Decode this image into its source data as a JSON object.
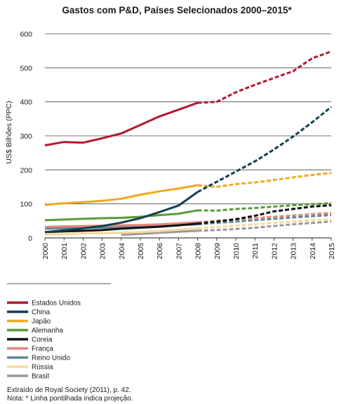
{
  "chart_data": {
    "type": "line",
    "title": "Gastos com P&D, Países Selecionados 2000–2015*",
    "ylabel": "US$ Bilhões (PPC)",
    "xlabel": "",
    "x": [
      "2000",
      "2001",
      "2002",
      "2003",
      "2004",
      "2005",
      "2006",
      "2007",
      "2008",
      "2009",
      "2010",
      "2011",
      "2012",
      "2013",
      "2014",
      "2015"
    ],
    "ylim": [
      0,
      600
    ],
    "yticks": [
      "0",
      "100",
      "200",
      "300",
      "400",
      "500",
      "600"
    ],
    "grid": "horizontal",
    "projection_start": "2008",
    "legend_position": "bottom-left",
    "series": [
      {
        "name": "Estados Unidos",
        "color": "#b5172e",
        "values": [
          272,
          282,
          280,
          293,
          307,
          332,
          357,
          377,
          397,
          400,
          428,
          450,
          470,
          490,
          528,
          548
        ]
      },
      {
        "name": "China",
        "color": "#113f4f",
        "values": [
          17,
          22,
          28,
          35,
          45,
          58,
          76,
          95,
          135,
          165,
          195,
          225,
          260,
          298,
          340,
          385
        ]
      },
      {
        "name": "Japão",
        "color": "#f2a81d",
        "values": [
          97,
          102,
          105,
          109,
          115,
          127,
          137,
          145,
          155,
          150,
          158,
          163,
          170,
          178,
          185,
          191
        ]
      },
      {
        "name": "Alemanha",
        "color": "#5a9a38",
        "values": [
          52,
          54,
          56,
          58,
          59,
          62,
          67,
          71,
          81,
          80,
          85,
          88,
          92,
          96,
          99,
          102
        ]
      },
      {
        "name": "Coreia",
        "color": "#111111",
        "values": [
          17,
          19,
          21,
          23,
          27,
          30,
          33,
          37,
          42,
          48,
          55,
          65,
          78,
          85,
          92,
          96
        ]
      },
      {
        "name": "França",
        "color": "#e8847a",
        "values": [
          32,
          34,
          35,
          36,
          37,
          38,
          40,
          43,
          46,
          50,
          54,
          58,
          62,
          66,
          70,
          73
        ]
      },
      {
        "name": "Reino Unido",
        "color": "#5b8a96",
        "values": [
          27,
          28,
          29,
          30,
          31,
          33,
          36,
          38,
          40,
          44,
          48,
          52,
          56,
          60,
          64,
          67
        ]
      },
      {
        "name": "Rússia",
        "color": "#f9d89a",
        "values": [
          10,
          11,
          13,
          14,
          15,
          17,
          20,
          24,
          28,
          32,
          36,
          40,
          44,
          48,
          52,
          55
        ]
      },
      {
        "name": "Brasil",
        "color": "#999999",
        "values": [
          null,
          null,
          null,
          null,
          9,
          12,
          15,
          18,
          21,
          23,
          26,
          30,
          35,
          40,
          44,
          48
        ]
      }
    ]
  },
  "source_note": "Extraído de Royal Society (2011), p. 42.",
  "projection_note": "Nota: * Linha pontilhada indica projeção."
}
